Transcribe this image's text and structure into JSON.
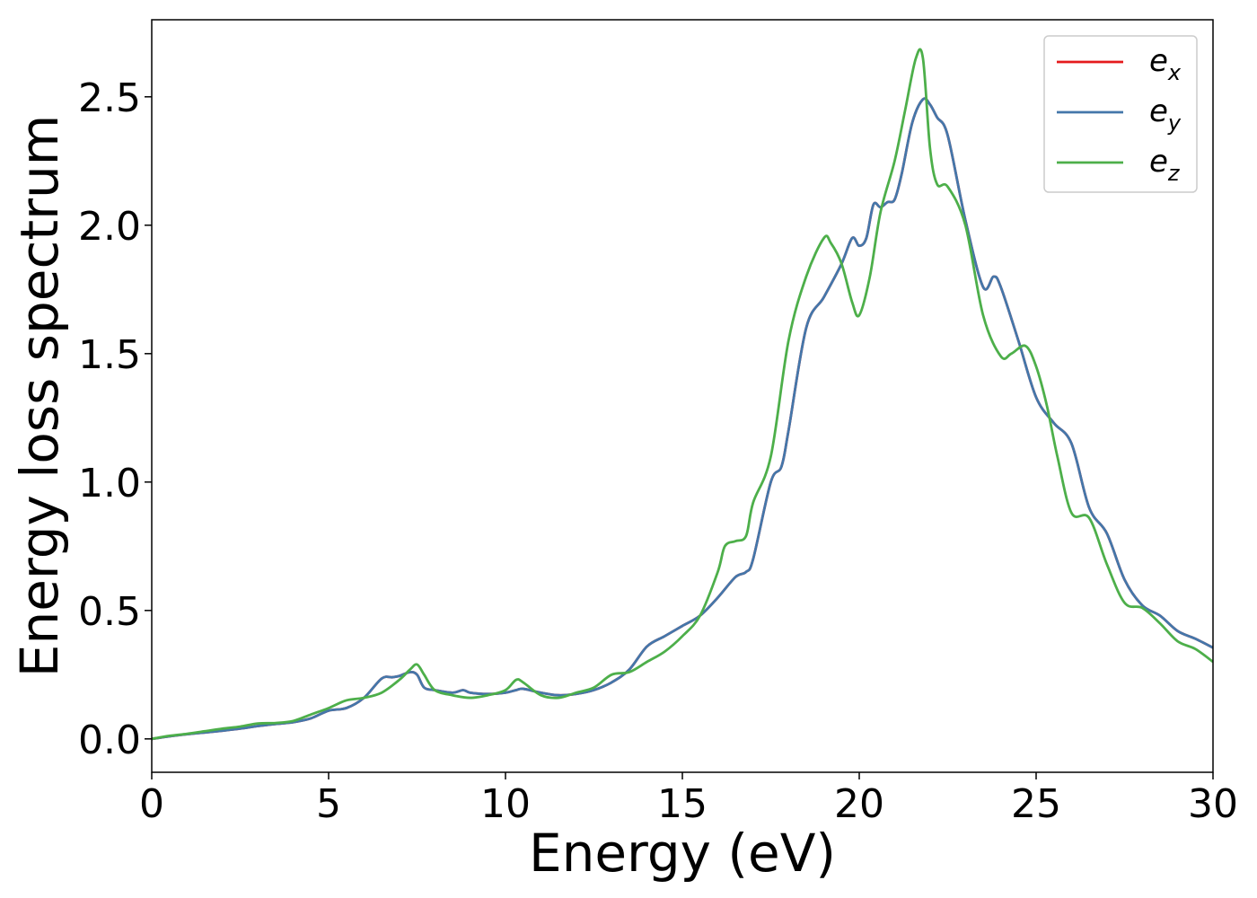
{
  "chart_data": {
    "type": "line",
    "title": "",
    "xlabel": "Energy (eV)",
    "ylabel": "Energy loss spectrum",
    "xlim": [
      0,
      30
    ],
    "ylim": [
      -0.13,
      2.8
    ],
    "xticks": [
      0,
      5,
      10,
      15,
      20,
      25,
      30
    ],
    "xtick_labels": [
      "0",
      "5",
      "10",
      "15",
      "20",
      "25",
      "30"
    ],
    "yticks": [
      0.0,
      0.5,
      1.0,
      1.5,
      2.0,
      2.5
    ],
    "ytick_labels": [
      "0.0",
      "0.5",
      "1.0",
      "1.5",
      "2.0",
      "2.5"
    ],
    "grid": false,
    "legend_position": "top-right",
    "series": [
      {
        "name": "e_x",
        "legend_base": "e",
        "legend_sub": "x",
        "color": "#e41a1c",
        "x": [
          0,
          0.5,
          1,
          1.5,
          2,
          2.5,
          3,
          3.5,
          4,
          4.5,
          5,
          5.5,
          6,
          6.5,
          6.8,
          7,
          7.3,
          7.5,
          7.7,
          8,
          8.5,
          8.8,
          9,
          9.5,
          10,
          10.3,
          10.5,
          11,
          11.5,
          12,
          12.5,
          13,
          13.5,
          14,
          14.5,
          15,
          15.5,
          16,
          16.5,
          16.8,
          17,
          17.5,
          17.8,
          18,
          18.5,
          19,
          19.5,
          19.8,
          20,
          20.2,
          20.4,
          20.6,
          20.8,
          21,
          21.2,
          21.5,
          21.8,
          22,
          22.2,
          22.5,
          23,
          23.5,
          23.8,
          24,
          24.5,
          25,
          25.5,
          26,
          26.5,
          27,
          27.5,
          28,
          28.5,
          29,
          29.5,
          30
        ],
        "y": [
          0,
          0.01,
          0.018,
          0.025,
          0.032,
          0.04,
          0.05,
          0.058,
          0.065,
          0.08,
          0.11,
          0.12,
          0.16,
          0.235,
          0.24,
          0.245,
          0.26,
          0.25,
          0.2,
          0.19,
          0.18,
          0.19,
          0.18,
          0.175,
          0.18,
          0.19,
          0.195,
          0.18,
          0.17,
          0.175,
          0.19,
          0.22,
          0.27,
          0.36,
          0.4,
          0.44,
          0.48,
          0.55,
          0.63,
          0.65,
          0.7,
          1.0,
          1.06,
          1.2,
          1.6,
          1.72,
          1.85,
          1.95,
          1.92,
          1.95,
          2.08,
          2.07,
          2.09,
          2.1,
          2.2,
          2.4,
          2.49,
          2.47,
          2.42,
          2.35,
          2.02,
          1.76,
          1.8,
          1.76,
          1.55,
          1.33,
          1.23,
          1.15,
          0.9,
          0.8,
          0.62,
          0.52,
          0.48,
          0.42,
          0.39,
          0.355
        ]
      },
      {
        "name": "e_y",
        "legend_base": "e",
        "legend_sub": "y",
        "color": "#4477aa",
        "x": [
          0,
          0.5,
          1,
          1.5,
          2,
          2.5,
          3,
          3.5,
          4,
          4.5,
          5,
          5.5,
          6,
          6.5,
          6.8,
          7,
          7.3,
          7.5,
          7.7,
          8,
          8.5,
          8.8,
          9,
          9.5,
          10,
          10.3,
          10.5,
          11,
          11.5,
          12,
          12.5,
          13,
          13.5,
          14,
          14.5,
          15,
          15.5,
          16,
          16.5,
          16.8,
          17,
          17.5,
          17.8,
          18,
          18.5,
          19,
          19.5,
          19.8,
          20,
          20.2,
          20.4,
          20.6,
          20.8,
          21,
          21.2,
          21.5,
          21.8,
          22,
          22.2,
          22.5,
          23,
          23.5,
          23.8,
          24,
          24.5,
          25,
          25.5,
          26,
          26.5,
          27,
          27.5,
          28,
          28.5,
          29,
          29.5,
          30
        ],
        "y": [
          0,
          0.01,
          0.018,
          0.025,
          0.032,
          0.04,
          0.05,
          0.058,
          0.065,
          0.08,
          0.11,
          0.12,
          0.16,
          0.235,
          0.24,
          0.245,
          0.26,
          0.25,
          0.2,
          0.19,
          0.18,
          0.19,
          0.18,
          0.175,
          0.18,
          0.19,
          0.195,
          0.18,
          0.17,
          0.175,
          0.19,
          0.22,
          0.27,
          0.36,
          0.4,
          0.44,
          0.48,
          0.55,
          0.63,
          0.65,
          0.7,
          1.0,
          1.06,
          1.2,
          1.6,
          1.72,
          1.85,
          1.95,
          1.92,
          1.95,
          2.08,
          2.07,
          2.09,
          2.1,
          2.2,
          2.4,
          2.49,
          2.47,
          2.42,
          2.35,
          2.02,
          1.76,
          1.8,
          1.76,
          1.55,
          1.33,
          1.23,
          1.15,
          0.9,
          0.8,
          0.62,
          0.52,
          0.48,
          0.42,
          0.39,
          0.355
        ]
      },
      {
        "name": "e_z",
        "legend_base": "e",
        "legend_sub": "z",
        "color": "#4daf4a",
        "x": [
          0,
          0.5,
          1,
          1.5,
          2,
          2.5,
          3,
          3.5,
          4,
          4.5,
          5,
          5.5,
          6,
          6.5,
          7,
          7.3,
          7.5,
          7.7,
          8,
          8.5,
          9,
          9.5,
          10,
          10.3,
          10.5,
          11,
          11.5,
          12,
          12.5,
          13,
          13.5,
          14,
          14.5,
          15,
          15.5,
          16,
          16.2,
          16.5,
          16.8,
          17,
          17.5,
          18,
          18.5,
          19,
          19.2,
          19.5,
          19.8,
          20,
          20.3,
          20.6,
          21,
          21.3,
          21.6,
          21.8,
          22,
          22.2,
          22.5,
          23,
          23.5,
          24,
          24.3,
          24.7,
          25,
          25.3,
          25.6,
          26,
          26.5,
          27,
          27.5,
          28,
          28.5,
          29,
          29.5,
          30
        ],
        "y": [
          0,
          0.012,
          0.02,
          0.03,
          0.04,
          0.048,
          0.06,
          0.062,
          0.07,
          0.095,
          0.12,
          0.15,
          0.16,
          0.18,
          0.23,
          0.27,
          0.29,
          0.25,
          0.19,
          0.17,
          0.16,
          0.17,
          0.19,
          0.23,
          0.22,
          0.17,
          0.16,
          0.18,
          0.2,
          0.25,
          0.26,
          0.3,
          0.34,
          0.4,
          0.48,
          0.65,
          0.75,
          0.77,
          0.79,
          0.92,
          1.1,
          1.55,
          1.8,
          1.95,
          1.93,
          1.85,
          1.7,
          1.65,
          1.8,
          2.05,
          2.25,
          2.45,
          2.65,
          2.65,
          2.3,
          2.16,
          2.15,
          2.0,
          1.65,
          1.49,
          1.5,
          1.53,
          1.45,
          1.3,
          1.1,
          0.88,
          0.86,
          0.68,
          0.53,
          0.51,
          0.45,
          0.38,
          0.35,
          0.3
        ]
      }
    ]
  }
}
